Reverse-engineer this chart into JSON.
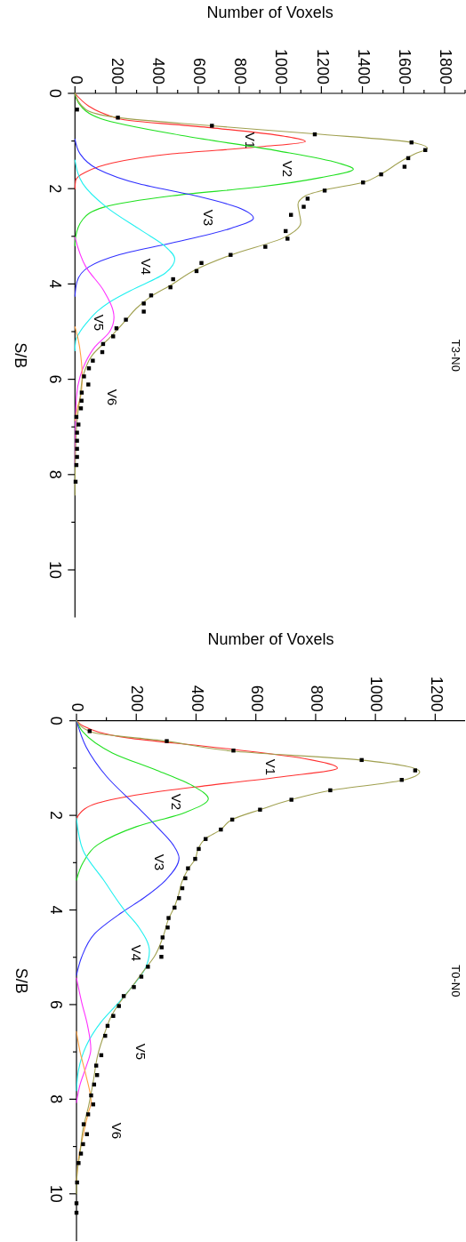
{
  "chart_data": [
    {
      "type": "line",
      "title": "T3-N0",
      "xlabel": "Number of Voxels",
      "ylabel": "S/B",
      "xlim": [
        0,
        1900
      ],
      "ylim": [
        11,
        0
      ],
      "xticks": [
        0,
        {
          "value": 100,
          "label": null
        },
        200,
        {
          "value": 300,
          "label": null
        },
        400,
        {
          "value": 500,
          "label": null
        },
        600,
        {
          "value": 700,
          "label": null
        },
        800,
        {
          "value": 900,
          "label": null
        },
        1000,
        {
          "value": 1100,
          "label": null
        },
        1200,
        {
          "value": 1300,
          "label": null
        },
        1400,
        {
          "value": 1500,
          "label": null
        },
        1600,
        {
          "value": 1700,
          "label": null
        },
        1800,
        {
          "value": 1900,
          "label": null
        }
      ],
      "yticks": [
        0,
        {
          "value": 1,
          "label": null
        },
        2,
        {
          "value": 3,
          "label": null
        },
        4,
        {
          "value": 5,
          "label": null
        },
        6,
        {
          "value": 7,
          "label": null
        },
        8,
        {
          "value": 9,
          "label": null
        },
        10
      ],
      "series": [
        {
          "name": "V1",
          "color": "#ff3030",
          "values": [
            0,
            0.53,
            0.72,
            0.9,
            1.01,
            1.12,
            1.27,
            1.46,
            1.65,
            1.83,
            2.0
          ],
          "x": [
            0,
            212,
            660,
            1020,
            1122,
            905,
            472,
            183,
            53,
            3,
            0
          ]
        },
        {
          "name": "V2",
          "color": "#20e020",
          "values": [
            0,
            0.2,
            0.53,
            0.9,
            1.21,
            1.46,
            1.59,
            1.77,
            1.96,
            2.15,
            2.39,
            2.64,
            3.02,
            3.2
          ],
          "x": [
            0,
            17,
            126,
            544,
            992,
            1281,
            1356,
            1194,
            905,
            472,
            140,
            39,
            3,
            0
          ]
        },
        {
          "name": "V3",
          "color": "#3030ff",
          "values": [
            0.96,
            1.27,
            1.59,
            1.9,
            2.15,
            2.39,
            2.62,
            2.83,
            3.14,
            3.39,
            3.64,
            3.95,
            4.26
          ],
          "x": [
            0,
            25,
            111,
            313,
            588,
            790,
            869,
            761,
            472,
            212,
            68,
            10,
            0
          ]
        },
        {
          "name": "V4",
          "color": "#20f0f0",
          "values": [
            1.4,
            1.9,
            2.39,
            2.89,
            3.2,
            3.48,
            3.76,
            4.14,
            4.38,
            4.57,
            4.76,
            5.0,
            5.2,
            5.4
          ],
          "x": [
            0,
            39,
            154,
            328,
            436,
            486,
            443,
            270,
            169,
            110,
            68,
            25,
            3,
            0
          ]
        },
        {
          "name": "V5",
          "color": "#ff30ff",
          "values": [
            3.02,
            3.64,
            4.14,
            4.7,
            5.0,
            5.32,
            5.63,
            5.94,
            6.38,
            6.87,
            7.8
          ],
          "x": [
            0,
            53,
            140,
            190,
            169,
            97,
            53,
            25,
            7,
            3,
            0
          ]
        },
        {
          "name": "V6",
          "color": "#ffa040",
          "values": [
            4.9,
            5.19,
            5.5,
            5.9,
            6.25,
            6.6,
            6.87
          ],
          "x": [
            0,
            17,
            28,
            35,
            32,
            12,
            0
          ]
        },
        {
          "color": "#a0a050",
          "values": [
            0,
            0.34,
            0.51,
            0.68,
            0.85,
            1.03,
            1.15,
            1.27,
            1.4,
            1.71,
            1.87,
            2.02,
            2.15,
            2.33,
            2.52,
            2.71,
            3.02,
            3.39,
            3.7,
            4.01,
            4.26,
            4.51,
            4.76,
            5.13,
            5.5,
            5.94,
            6.38,
            6.87,
            7.5,
            8.43
          ],
          "x": [
            0,
            53,
            212,
            667,
            1165,
            1641,
            1716,
            1656,
            1598,
            1483,
            1403,
            1223,
            1122,
            1086,
            1093,
            1100,
            1021,
            761,
            588,
            472,
            371,
            299,
            248,
            169,
            83,
            39,
            25,
            10,
            3,
            0
          ]
        },
        {
          "type": "scatter",
          "marker": "square",
          "color": "#000000",
          "values": [
            0.34,
            0.51,
            0.68,
            0.86,
            1.03,
            1.19,
            1.36,
            1.54,
            1.7,
            1.87,
            2.04,
            2.21,
            2.38,
            2.55,
            2.89,
            3.05,
            3.22,
            3.39,
            3.56,
            3.73,
            3.9,
            4.07,
            4.24,
            4.41,
            4.58,
            4.75,
            4.93,
            5.1,
            5.26,
            5.43,
            5.61,
            5.77,
            5.94,
            6.11,
            6.28,
            6.45,
            6.61,
            6.79,
            6.95,
            7.12,
            7.29,
            7.46,
            7.63,
            7.8,
            8.15
          ],
          "x": [
            10,
            209,
            667,
            1168,
            1639,
            1706,
            1623,
            1605,
            1491,
            1403,
            1216,
            1133,
            1114,
            1052,
            1026,
            1035,
            927,
            758,
            616,
            592,
            478,
            465,
            371,
            335,
            335,
            248,
            202,
            186,
            137,
            133,
            87,
            68,
            44,
            65,
            33,
            32,
            29,
            7,
            17,
            10,
            10,
            10,
            10,
            7,
            3
          ]
        }
      ]
    },
    {
      "type": "line",
      "title": "T0-N0",
      "xlabel": "Number of Voxels",
      "ylabel": "S/B",
      "xlim": [
        0,
        1300
      ],
      "ylim": [
        11,
        0
      ],
      "xticks": [
        0,
        {
          "value": 100,
          "label": null
        },
        200,
        {
          "value": 300,
          "label": null
        },
        400,
        {
          "value": 500,
          "label": null
        },
        600,
        {
          "value": 700,
          "label": null
        },
        800,
        {
          "value": 900,
          "label": null
        },
        1000,
        {
          "value": 1100,
          "label": null
        },
        1200
      ],
      "yticks": [
        0,
        {
          "value": 1,
          "label": null
        },
        2,
        {
          "value": 3,
          "label": null
        },
        4,
        {
          "value": 5,
          "label": null
        },
        6,
        {
          "value": 7,
          "label": null
        },
        8,
        {
          "value": 9,
          "label": null
        },
        10
      ],
      "series": [
        {
          "name": "V1",
          "color": "#ff3030",
          "values": [
            0,
            0.11,
            0.36,
            0.55,
            0.8,
            1.0,
            1.18,
            1.37,
            1.55,
            1.74,
            1.99,
            2.1
          ],
          "x": [
            0,
            22,
            170,
            446,
            762,
            873,
            693,
            437,
            219,
            71,
            7,
            0
          ]
        },
        {
          "name": "V2",
          "color": "#20e020",
          "values": [
            0,
            0.24,
            0.68,
            1.05,
            1.37,
            1.65,
            1.93,
            2.24,
            2.62,
            3.0,
            3.37
          ],
          "x": [
            0,
            22,
            120,
            269,
            387,
            441,
            367,
            200,
            71,
            22,
            0
          ]
        },
        {
          "name": "V3",
          "color": "#3030ff",
          "values": [
            0,
            0.55,
            1.18,
            1.8,
            2.24,
            2.62,
            2.9,
            3.37,
            3.75,
            4.06,
            4.5,
            5.0,
            5.38
          ],
          "x": [
            0,
            32,
            101,
            200,
            269,
            323,
            343,
            298,
            224,
            150,
            61,
            17,
            0
          ]
        },
        {
          "name": "V4",
          "color": "#20f0f0",
          "values": [
            2.06,
            2.74,
            3.37,
            4.0,
            4.37,
            4.87,
            5.25,
            5.63,
            6.0,
            6.38,
            6.88,
            7.38,
            7.82
          ],
          "x": [
            0,
            22,
            91,
            160,
            209,
            244,
            229,
            185,
            135,
            81,
            32,
            7,
            0
          ]
        },
        {
          "name": "V5",
          "color": "#ff30ff",
          "values": [
            5.44,
            5.94,
            6.44,
            6.94,
            7.32,
            7.69,
            8.07
          ],
          "x": [
            0,
            17,
            37,
            48,
            32,
            12,
            0
          ]
        },
        {
          "name": "V6",
          "color": "#ffa040",
          "values": [
            6.57,
            7.0,
            7.5,
            8.07,
            8.26,
            8.76,
            9.26,
            9.76
          ],
          "x": [
            0,
            12,
            32,
            49,
            41,
            22,
            7,
            0
          ]
        },
        {
          "color": "#a0a050",
          "values": [
            0,
            0.24,
            0.43,
            0.65,
            0.83,
            1.08,
            1.26,
            1.47,
            1.67,
            1.88,
            2.09,
            2.31,
            2.49,
            2.71,
            2.93,
            3.12,
            3.37,
            3.75,
            3.93,
            4.19,
            4.56,
            5.0,
            5.25,
            5.63,
            6.0,
            6.25,
            6.57,
            7.07,
            7.63,
            8.13,
            8.63,
            9.13,
            9.58,
            10.0
          ],
          "x": [
            0,
            51,
            298,
            535,
            950,
            1148,
            1088,
            851,
            718,
            614,
            520,
            481,
            432,
            407,
            397,
            375,
            355,
            338,
            328,
            308,
            290,
            259,
            229,
            185,
            140,
            116,
            96,
            71,
            56,
            41,
            22,
            12,
            2,
            0
          ]
        },
        {
          "type": "scatter",
          "marker": "square",
          "color": "#000000",
          "values": [
            0.22,
            0.43,
            0.63,
            0.83,
            1.05,
            1.25,
            1.47,
            1.67,
            1.88,
            2.09,
            2.3,
            2.5,
            2.71,
            2.92,
            3.12,
            3.33,
            3.54,
            3.75,
            3.95,
            4.17,
            4.37,
            4.58,
            4.79,
            4.99,
            5.2,
            5.41,
            5.63,
            5.82,
            6.03,
            6.24,
            6.45,
            6.66,
            7.07,
            7.29,
            7.49,
            7.69,
            7.92,
            8.11,
            8.32,
            8.53,
            8.74,
            8.95,
            9.15,
            9.35,
            9.76,
            10.2,
            10.4
          ],
          "x": [
            44,
            302,
            525,
            954,
            1133,
            1088,
            849,
            719,
            614,
            521,
            483,
            432,
            409,
            397,
            373,
            364,
            354,
            343,
            328,
            308,
            305,
            288,
            285,
            284,
            239,
            217,
            192,
            158,
            142,
            123,
            104,
            96,
            83,
            66,
            69,
            59,
            49,
            56,
            39,
            24,
            35,
            22,
            15,
            7,
            2,
            0,
            0
          ]
        }
      ]
    }
  ]
}
